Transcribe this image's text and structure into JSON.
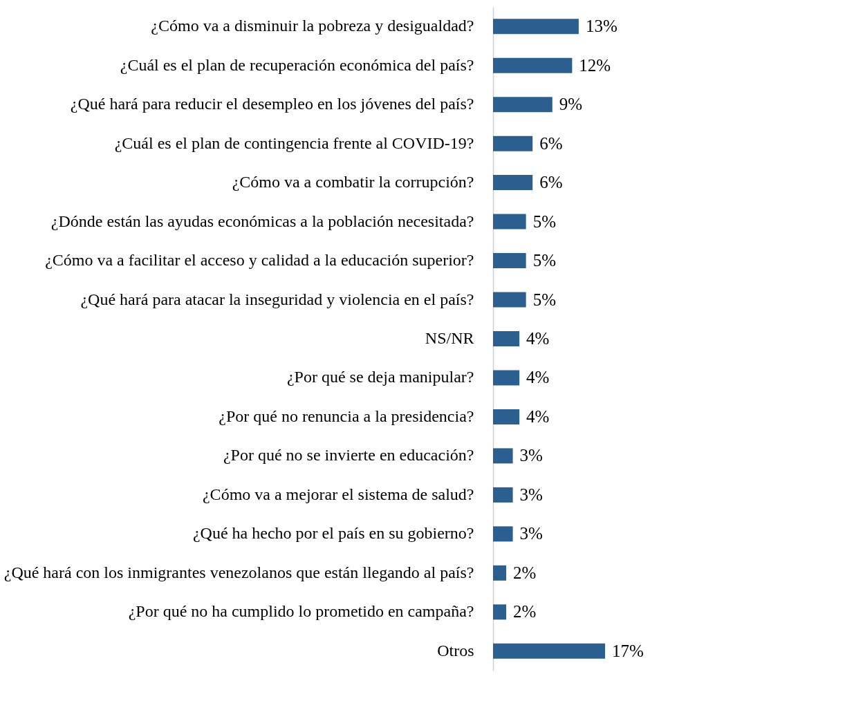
{
  "chart_data": {
    "type": "bar",
    "orientation": "horizontal",
    "color": "#2a5f8f",
    "categories": [
      "¿Cómo va a disminuir la pobreza y desigualdad?",
      "¿Cuál es el plan de recuperación económica del país?",
      "¿Qué hará para reducir el desempleo en los jóvenes del país?",
      "¿Cuál es el plan de contingencia frente al COVID-19?",
      "¿Cómo va a combatir la corrupción?",
      "¿Dónde están las ayudas económicas a la población necesitada?",
      "¿Cómo va a facilitar el acceso y calidad a la educación superior?",
      "¿Qué hará para atacar la inseguridad y violencia en el país?",
      "NS/NR",
      "¿Por qué se deja manipular?",
      "¿Por qué no renuncia a la presidencia?",
      "¿Por qué no se invierte en educación?",
      "¿Cómo va a mejorar el sistema de salud?",
      "¿Qué ha hecho por el país en su gobierno?",
      "¿Qué hará con los inmigrantes venezolanos que están llegando al país?",
      "¿Por qué no ha cumplido lo prometido en campaña?",
      "Otros"
    ],
    "values": [
      13,
      12,
      9,
      6,
      6,
      5,
      5,
      5,
      4,
      4,
      4,
      3,
      3,
      3,
      2,
      2,
      17
    ],
    "value_labels": [
      "13%",
      "12%",
      "9%",
      "6%",
      "6%",
      "5%",
      "5%",
      "5%",
      "4%",
      "4%",
      "4%",
      "3%",
      "3%",
      "3%",
      "2%",
      "2%",
      "17%"
    ],
    "grid": false
  }
}
